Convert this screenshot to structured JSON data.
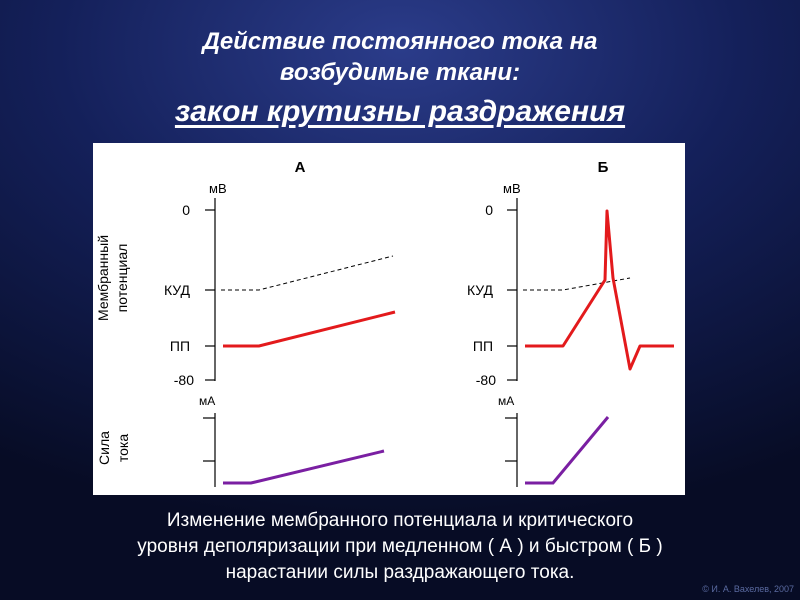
{
  "title": {
    "line1": "Действие постоянного тока на",
    "line2": "возбудимые ткани:",
    "line3": "закон крутизны раздражения"
  },
  "figure": {
    "panel_a_label": "А",
    "panel_b_label": "Б",
    "unit_mv": "мВ",
    "unit_ma": "мА",
    "tick_0": "0",
    "tick_kud": "КУД",
    "tick_pp": "ПП",
    "tick_80": "-80",
    "ylabel_potential_1": "Мембранный",
    "ylabel_potential_2": "потенциал",
    "ylabel_current_1": "Сила",
    "ylabel_current_2": "тока",
    "colors": {
      "potential": "#e31a1c",
      "current": "#7a1fa2",
      "threshold": "#000000"
    }
  },
  "caption": {
    "line1": "Изменение мембранного потенциала и критического",
    "line2": "уровня деполяризации при медленном ( А ) и быстром ( Б )",
    "line3": "нарастании силы раздражающего тока."
  },
  "copyright": "© И. А. Вахелев, 2007"
}
